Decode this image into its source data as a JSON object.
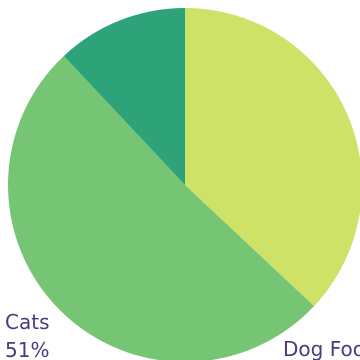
{
  "chart_data": {
    "type": "pie",
    "categories": [
      "Dog Food",
      "Cats",
      null
    ],
    "values": [
      37,
      51,
      12
    ],
    "value_labels": [
      null,
      "51%",
      null
    ],
    "colors": [
      "#cde267",
      "#76c574",
      "#2ea37a"
    ]
  }
}
